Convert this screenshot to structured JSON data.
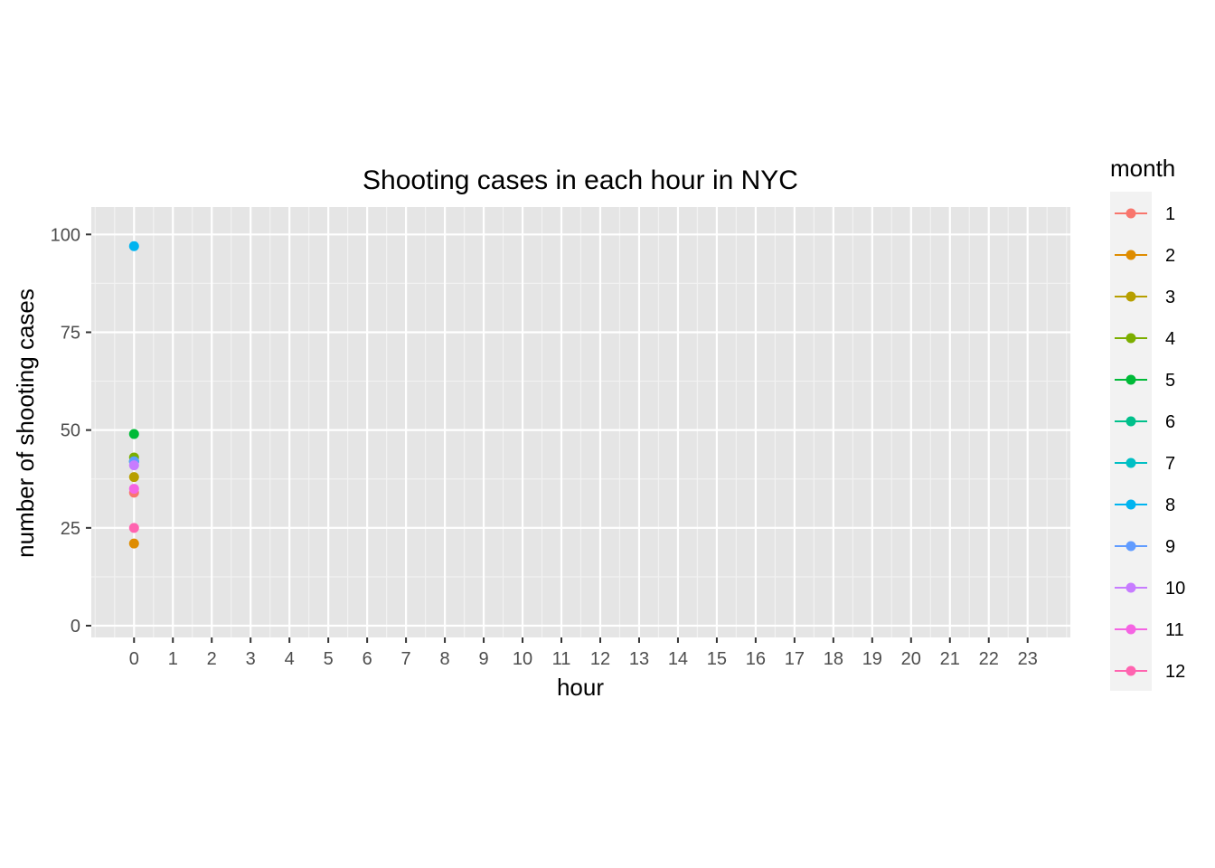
{
  "chart_data": {
    "type": "line",
    "title": "Shooting cases in each hour in NYC",
    "xlabel": "hour",
    "ylabel": "number of shooting cases",
    "x_ticks": [
      "0",
      "1",
      "2",
      "3",
      "4",
      "5",
      "6",
      "7",
      "8",
      "9",
      "10",
      "11",
      "12",
      "13",
      "14",
      "15",
      "16",
      "17",
      "18",
      "19",
      "20",
      "21",
      "22",
      "23"
    ],
    "y_ticks": [
      0,
      25,
      50,
      75,
      100
    ],
    "xlim": [
      -1.1,
      24.1
    ],
    "ylim": [
      -3,
      107
    ],
    "grid": true,
    "background": "#e5e5e5",
    "legend": {
      "title": "month",
      "position": "right"
    },
    "series": [
      {
        "name": "1",
        "color": "#F8766D",
        "points": [
          {
            "x": 0,
            "y": 34
          }
        ]
      },
      {
        "name": "2",
        "color": "#DE8C00",
        "points": [
          {
            "x": 0,
            "y": 21
          }
        ]
      },
      {
        "name": "3",
        "color": "#B79F00",
        "points": [
          {
            "x": 0,
            "y": 38
          }
        ]
      },
      {
        "name": "4",
        "color": "#7CAE00",
        "points": [
          {
            "x": 0,
            "y": 43
          }
        ]
      },
      {
        "name": "5",
        "color": "#00BA38",
        "points": [
          {
            "x": 0,
            "y": 49
          }
        ]
      },
      {
        "name": "6",
        "color": "#00C08B",
        "points": [
          {
            "x": 0,
            "y": 42
          }
        ]
      },
      {
        "name": "7",
        "color": "#00BFC4",
        "points": [
          {
            "x": 0,
            "y": 42
          }
        ]
      },
      {
        "name": "8",
        "color": "#00B4F0",
        "points": [
          {
            "x": 0,
            "y": 97
          }
        ]
      },
      {
        "name": "9",
        "color": "#619CFF",
        "points": [
          {
            "x": 0,
            "y": 42
          }
        ]
      },
      {
        "name": "10",
        "color": "#C77CFF",
        "points": [
          {
            "x": 0,
            "y": 41
          }
        ]
      },
      {
        "name": "11",
        "color": "#F564E3",
        "points": [
          {
            "x": 0,
            "y": 35
          }
        ]
      },
      {
        "name": "12",
        "color": "#FF64B0",
        "points": [
          {
            "x": 0,
            "y": 25
          }
        ]
      }
    ]
  }
}
